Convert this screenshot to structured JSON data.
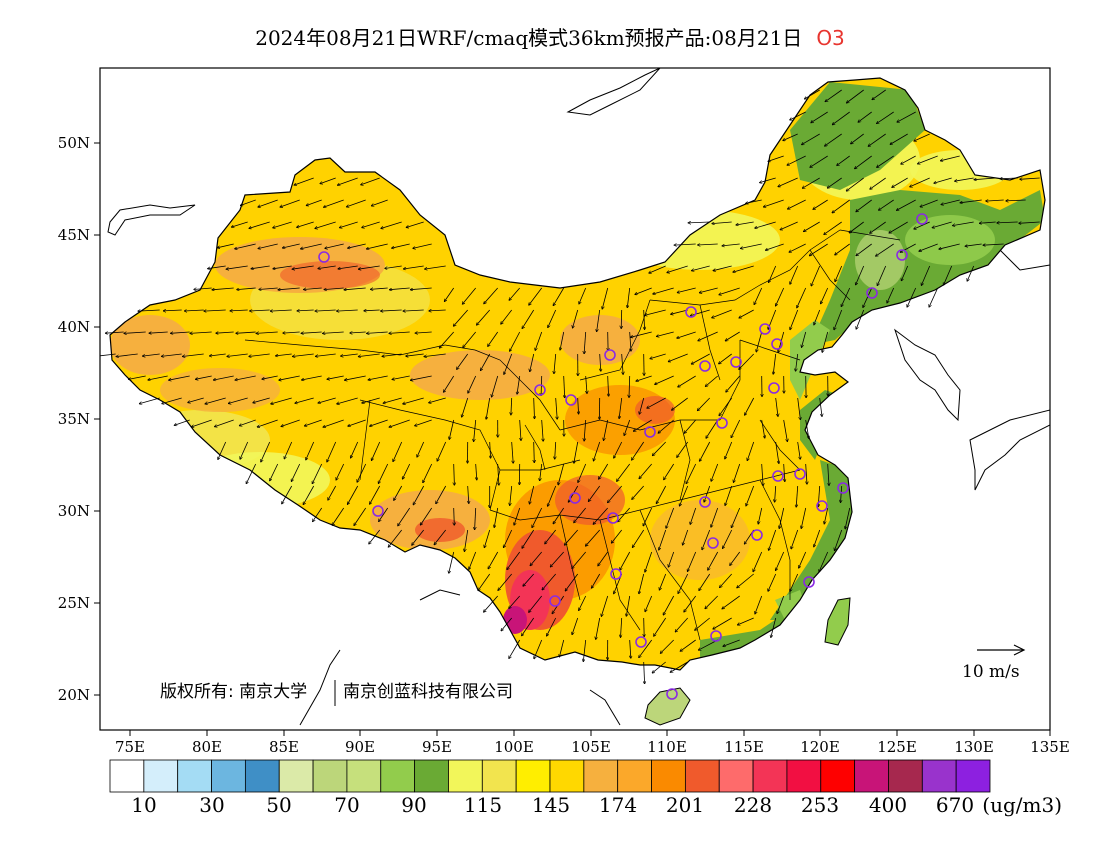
{
  "title": {
    "main": "2024年08月21日WRF/cmaq模式36km预报产品:08月21日",
    "species": "O3"
  },
  "map": {
    "lat_ticks": [
      "50N",
      "45N",
      "40N",
      "35N",
      "30N",
      "25N",
      "20N"
    ],
    "lon_ticks": [
      "75E",
      "80E",
      "85E",
      "90E",
      "95E",
      "100E",
      "105E",
      "110E",
      "115E",
      "120E",
      "125E",
      "130E",
      "135E"
    ],
    "copyright": "版权所有: 南京大学",
    "company": "南京创蓝科技有限公司",
    "vector_label": "10 m/s",
    "colors": {
      "land_bg": "#ffd200",
      "ocean": "#ffffff",
      "frame": "#000000",
      "wind_arrow": "#000000",
      "station_marker": "#8a2be2"
    }
  },
  "colorbar": {
    "colors": [
      "#ffffff",
      "#d4eefb",
      "#a4dcf4",
      "#6cb6e0",
      "#3f8fc6",
      "#dbeaa8",
      "#bcd67a",
      "#c6e07c",
      "#92cc4c",
      "#6aaa34",
      "#f2f65a",
      "#f2e44e",
      "#ffee00",
      "#ffd800",
      "#f6b03e",
      "#fba82a",
      "#fa8a00",
      "#f05a2c",
      "#fe6b6b",
      "#f33456",
      "#f20f42",
      "#fe0000",
      "#c81478",
      "#a6284e",
      "#9933cc",
      "#8d20e0"
    ],
    "labels": [
      "10",
      "30",
      "50",
      "70",
      "90",
      "115",
      "145",
      "174",
      "201",
      "228",
      "253",
      "400",
      "670"
    ],
    "unit": "(ug/m3)"
  }
}
